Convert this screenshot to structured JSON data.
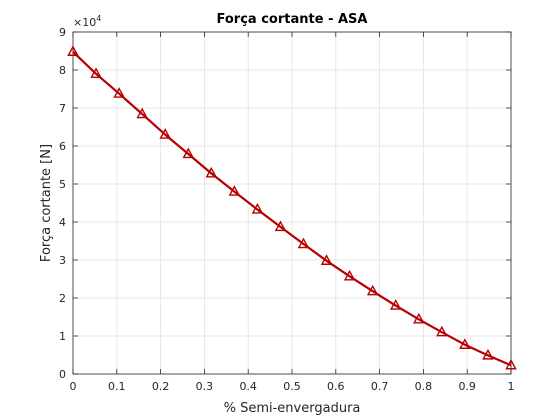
{
  "chart_data": {
    "type": "line",
    "title": "Força cortante - ASA",
    "xlabel": "% Semi-envergadura",
    "ylabel": "Força cortante [N]",
    "xlim": [
      0,
      1
    ],
    "ylim": [
      0,
      90000
    ],
    "y_exponent_label": "×10",
    "y_exponent_power": "4",
    "x_ticks": [
      0,
      0.1,
      0.2,
      0.3,
      0.4,
      0.5,
      0.6,
      0.7,
      0.8,
      0.9,
      1
    ],
    "x_tick_labels": [
      "0",
      "0.1",
      "0.2",
      "0.3",
      "0.4",
      "0.5",
      "0.6",
      "0.7",
      "0.8",
      "0.9",
      "1"
    ],
    "y_ticks": [
      0,
      10000,
      20000,
      30000,
      40000,
      50000,
      60000,
      70000,
      80000,
      90000
    ],
    "y_tick_labels": [
      "0",
      "1",
      "2",
      "3",
      "4",
      "5",
      "6",
      "7",
      "8",
      "9"
    ],
    "grid": true,
    "marker": "triangle",
    "color": "#b80000",
    "series": [
      {
        "x": [
          0,
          0.0526,
          0.1053,
          0.1579,
          0.2105,
          0.2632,
          0.3158,
          0.3684,
          0.4211,
          0.4737,
          0.5263,
          0.5789,
          0.6316,
          0.6842,
          0.7368,
          0.7895,
          0.8421,
          0.8947,
          0.9474,
          1.0
        ],
        "y": [
          84800,
          79000,
          73800,
          68400,
          63000,
          57900,
          52800,
          48000,
          43300,
          38700,
          34200,
          29800,
          25700,
          21800,
          18000,
          14400,
          11000,
          7700,
          4900,
          2300
        ]
      }
    ]
  }
}
